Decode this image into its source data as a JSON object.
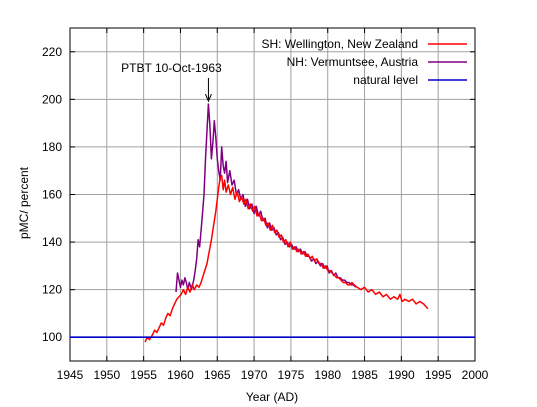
{
  "chart_data": {
    "type": "line",
    "title": "",
    "xlabel": "Year (AD)",
    "ylabel": "pMC/ percent",
    "xlim": [
      1945,
      2000
    ],
    "ylim": [
      90,
      230
    ],
    "xticks": [
      1945,
      1950,
      1955,
      1960,
      1965,
      1970,
      1975,
      1980,
      1985,
      1990,
      1995,
      2000
    ],
    "yticks": [
      100,
      120,
      140,
      160,
      180,
      200,
      220
    ],
    "grid": true,
    "legend_position": "top-right",
    "annotation": {
      "text": "PTBT 10-Oct-1963",
      "x": 1963.8,
      "y": 198
    },
    "series": [
      {
        "name": "SH: Wellington, New Zealand",
        "color": "#ff0000",
        "points": [
          [
            1955.2,
            98
          ],
          [
            1955.5,
            100
          ],
          [
            1955.8,
            99
          ],
          [
            1956.2,
            101
          ],
          [
            1956.5,
            103
          ],
          [
            1956.8,
            102
          ],
          [
            1957.1,
            104
          ],
          [
            1957.4,
            106
          ],
          [
            1957.7,
            105
          ],
          [
            1958.0,
            108
          ],
          [
            1958.3,
            110
          ],
          [
            1958.6,
            109
          ],
          [
            1958.9,
            112
          ],
          [
            1959.2,
            114
          ],
          [
            1959.5,
            116
          ],
          [
            1959.8,
            117
          ],
          [
            1960.1,
            118
          ],
          [
            1960.4,
            120
          ],
          [
            1960.7,
            118
          ],
          [
            1961.0,
            121
          ],
          [
            1961.3,
            119
          ],
          [
            1961.6,
            122
          ],
          [
            1961.9,
            120
          ],
          [
            1962.2,
            122
          ],
          [
            1962.5,
            121
          ],
          [
            1962.8,
            123
          ],
          [
            1963.0,
            125
          ],
          [
            1963.3,
            128
          ],
          [
            1963.6,
            131
          ],
          [
            1963.9,
            136
          ],
          [
            1964.2,
            141
          ],
          [
            1964.5,
            147
          ],
          [
            1964.8,
            153
          ],
          [
            1965.0,
            158
          ],
          [
            1965.2,
            163
          ],
          [
            1965.4,
            167
          ],
          [
            1965.6,
            168
          ],
          [
            1965.8,
            162
          ],
          [
            1966.0,
            166
          ],
          [
            1966.2,
            161
          ],
          [
            1966.5,
            164
          ],
          [
            1966.8,
            160
          ],
          [
            1967.1,
            163
          ],
          [
            1967.4,
            158
          ],
          [
            1967.7,
            161
          ],
          [
            1968.0,
            157
          ],
          [
            1968.3,
            159
          ],
          [
            1968.6,
            156
          ],
          [
            1968.9,
            158
          ],
          [
            1969.2,
            154
          ],
          [
            1969.5,
            156
          ],
          [
            1969.8,
            153
          ],
          [
            1970.1,
            155
          ],
          [
            1970.4,
            151
          ],
          [
            1970.7,
            152
          ],
          [
            1971.0,
            149
          ],
          [
            1971.3,
            150
          ],
          [
            1971.6,
            147
          ],
          [
            1971.9,
            148
          ],
          [
            1972.2,
            145
          ],
          [
            1972.5,
            147
          ],
          [
            1972.8,
            144
          ],
          [
            1973.1,
            145
          ],
          [
            1973.4,
            142
          ],
          [
            1973.7,
            143
          ],
          [
            1974.0,
            140
          ],
          [
            1974.3,
            141
          ],
          [
            1974.6,
            138
          ],
          [
            1974.9,
            140
          ],
          [
            1975.2,
            137
          ],
          [
            1975.5,
            138
          ],
          [
            1975.8,
            136
          ],
          [
            1976.1,
            137
          ],
          [
            1976.4,
            135
          ],
          [
            1976.7,
            136
          ],
          [
            1977.0,
            134
          ],
          [
            1977.3,
            135
          ],
          [
            1977.6,
            133
          ],
          [
            1977.9,
            134
          ],
          [
            1978.2,
            132
          ],
          [
            1978.5,
            133
          ],
          [
            1978.8,
            131
          ],
          [
            1979.1,
            131
          ],
          [
            1979.4,
            129
          ],
          [
            1979.7,
            130
          ],
          [
            1980.0,
            128
          ],
          [
            1980.3,
            128
          ],
          [
            1980.6,
            127
          ],
          [
            1980.9,
            126
          ],
          [
            1981.2,
            125
          ],
          [
            1981.5,
            125
          ],
          [
            1981.8,
            124
          ],
          [
            1982.1,
            123
          ],
          [
            1982.4,
            123
          ],
          [
            1982.7,
            122
          ],
          [
            1983.0,
            122
          ],
          [
            1983.3,
            123
          ],
          [
            1983.6,
            122
          ],
          [
            1984.0,
            121
          ],
          [
            1984.5,
            120
          ],
          [
            1985.0,
            121
          ],
          [
            1985.5,
            119
          ],
          [
            1986.0,
            120
          ],
          [
            1986.5,
            118
          ],
          [
            1987.0,
            119
          ],
          [
            1987.5,
            117
          ],
          [
            1988.0,
            118
          ],
          [
            1988.5,
            116
          ],
          [
            1989.0,
            117
          ],
          [
            1989.5,
            116
          ],
          [
            1989.8,
            118
          ],
          [
            1990.1,
            115
          ],
          [
            1990.5,
            116
          ],
          [
            1991.0,
            115
          ],
          [
            1991.5,
            116
          ],
          [
            1992.0,
            114
          ],
          [
            1992.5,
            115
          ],
          [
            1993.0,
            114
          ],
          [
            1993.3,
            113
          ],
          [
            1993.6,
            112
          ]
        ]
      },
      {
        "name": "NH: Vermuntsee, Austria",
        "color": "#800080",
        "points": [
          [
            1959.4,
            119
          ],
          [
            1959.6,
            127
          ],
          [
            1959.8,
            124
          ],
          [
            1960.0,
            121
          ],
          [
            1960.2,
            124
          ],
          [
            1960.4,
            122
          ],
          [
            1960.6,
            125
          ],
          [
            1960.8,
            123
          ],
          [
            1961.0,
            120
          ],
          [
            1961.2,
            123
          ],
          [
            1961.5,
            120
          ],
          [
            1961.8,
            124
          ],
          [
            1962.0,
            128
          ],
          [
            1962.2,
            133
          ],
          [
            1962.4,
            141
          ],
          [
            1962.6,
            138
          ],
          [
            1962.8,
            145
          ],
          [
            1963.0,
            152
          ],
          [
            1963.2,
            160
          ],
          [
            1963.4,
            175
          ],
          [
            1963.6,
            187
          ],
          [
            1963.8,
            198
          ],
          [
            1964.0,
            189
          ],
          [
            1964.2,
            175
          ],
          [
            1964.4,
            182
          ],
          [
            1964.6,
            191
          ],
          [
            1964.8,
            184
          ],
          [
            1965.0,
            175
          ],
          [
            1965.2,
            170
          ],
          [
            1965.4,
            166
          ],
          [
            1965.6,
            180
          ],
          [
            1965.8,
            172
          ],
          [
            1966.0,
            169
          ],
          [
            1966.2,
            174
          ],
          [
            1966.4,
            165
          ],
          [
            1966.7,
            170
          ],
          [
            1967.0,
            164
          ],
          [
            1967.3,
            166
          ],
          [
            1967.6,
            160
          ],
          [
            1967.9,
            162
          ],
          [
            1968.2,
            158
          ],
          [
            1968.5,
            160
          ],
          [
            1968.8,
            155
          ],
          [
            1969.1,
            158
          ],
          [
            1969.4,
            154
          ],
          [
            1969.7,
            156
          ],
          [
            1970.0,
            152
          ],
          [
            1970.3,
            155
          ],
          [
            1970.6,
            151
          ],
          [
            1970.9,
            153
          ],
          [
            1971.2,
            149
          ],
          [
            1971.5,
            150
          ],
          [
            1971.8,
            146
          ],
          [
            1972.1,
            148
          ],
          [
            1972.4,
            145
          ],
          [
            1972.7,
            146
          ],
          [
            1973.0,
            143
          ],
          [
            1973.3,
            144
          ],
          [
            1973.6,
            141
          ],
          [
            1973.9,
            142
          ],
          [
            1974.2,
            139
          ],
          [
            1974.5,
            140
          ],
          [
            1974.8,
            138
          ],
          [
            1975.1,
            139
          ],
          [
            1975.4,
            137
          ],
          [
            1975.7,
            138
          ],
          [
            1976.0,
            136
          ],
          [
            1976.3,
            137
          ],
          [
            1976.6,
            135
          ],
          [
            1976.9,
            136
          ],
          [
            1977.2,
            134
          ],
          [
            1977.5,
            134
          ],
          [
            1977.8,
            132
          ],
          [
            1978.1,
            133
          ],
          [
            1978.4,
            131
          ],
          [
            1978.7,
            132
          ],
          [
            1979.0,
            130
          ],
          [
            1979.3,
            131
          ],
          [
            1979.6,
            129
          ],
          [
            1979.9,
            130
          ],
          [
            1980.2,
            127
          ],
          [
            1980.5,
            128
          ],
          [
            1980.8,
            126
          ],
          [
            1981.1,
            127
          ],
          [
            1981.4,
            125
          ],
          [
            1981.7,
            125
          ],
          [
            1982.0,
            124
          ],
          [
            1982.3,
            124
          ],
          [
            1982.6,
            123
          ],
          [
            1982.9,
            123
          ],
          [
            1983.2,
            122
          ],
          [
            1983.5,
            122
          ],
          [
            1983.8,
            121
          ]
        ]
      },
      {
        "name": "natural level",
        "color": "#0000cc",
        "points": [
          [
            1945,
            100
          ],
          [
            2000,
            100
          ]
        ]
      }
    ]
  }
}
